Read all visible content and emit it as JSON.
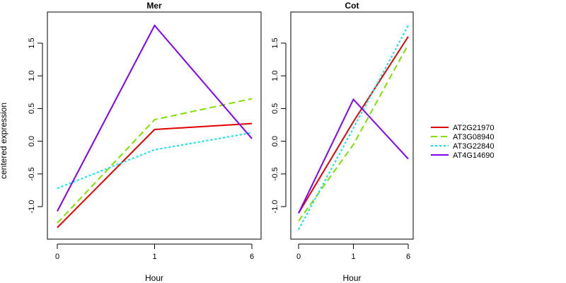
{
  "figure": {
    "y_axis_title": "centered expression"
  },
  "legend": {
    "entries": [
      {
        "label": "AT2G21970",
        "color": "#e00000",
        "dash": "solid"
      },
      {
        "label": "AT3G08940",
        "color": "#7fe000",
        "dash": "dashed"
      },
      {
        "label": "AT3G22840",
        "color": "#00e5e5",
        "dash": "dotted"
      },
      {
        "label": "AT4G14690",
        "color": "#7f00ff",
        "dash": "solid"
      }
    ]
  },
  "chart_data": [
    {
      "type": "line",
      "title": "Mer",
      "xlabel": "Hour",
      "ylabel": "centered expression",
      "categories": [
        "0",
        "1",
        "6"
      ],
      "yticks": [
        "-1.0",
        "-0.5",
        "0.0",
        "0.5",
        "1.0",
        "1.5"
      ],
      "ylim": [
        -1.35,
        1.82
      ],
      "grid": false,
      "series": [
        {
          "name": "AT2G21970",
          "color": "#e00000",
          "dash": "solid",
          "values": [
            -1.32,
            0.18,
            0.27
          ]
        },
        {
          "name": "AT3G08940",
          "color": "#7fe000",
          "dash": "dashed",
          "values": [
            -1.25,
            0.33,
            0.65
          ]
        },
        {
          "name": "AT3G22840",
          "color": "#00e5e5",
          "dash": "dotted",
          "values": [
            -0.72,
            -0.13,
            0.13
          ]
        },
        {
          "name": "AT4G14690",
          "color": "#7f00ff",
          "dash": "solid",
          "values": [
            -1.07,
            1.77,
            0.04
          ]
        }
      ]
    },
    {
      "type": "line",
      "title": "Cot",
      "xlabel": "Hour",
      "ylabel": "",
      "categories": [
        "0",
        "1",
        "6"
      ],
      "yticks": [
        "-1.0",
        "-0.5",
        "0.0",
        "0.5",
        "1.0",
        "1.5"
      ],
      "ylim": [
        -1.35,
        1.82
      ],
      "grid": false,
      "series": [
        {
          "name": "AT2G21970",
          "color": "#e00000",
          "dash": "solid",
          "values": [
            -1.1,
            0.3,
            1.6
          ]
        },
        {
          "name": "AT3G08940",
          "color": "#7fe000",
          "dash": "dashed",
          "values": [
            -1.22,
            -0.05,
            1.48
          ]
        },
        {
          "name": "AT3G22840",
          "color": "#00e5e5",
          "dash": "dotted",
          "values": [
            -1.35,
            0.2,
            1.77
          ]
        },
        {
          "name": "AT4G14690",
          "color": "#7f00ff",
          "dash": "solid",
          "values": [
            -1.1,
            0.64,
            -0.27
          ]
        }
      ]
    }
  ]
}
